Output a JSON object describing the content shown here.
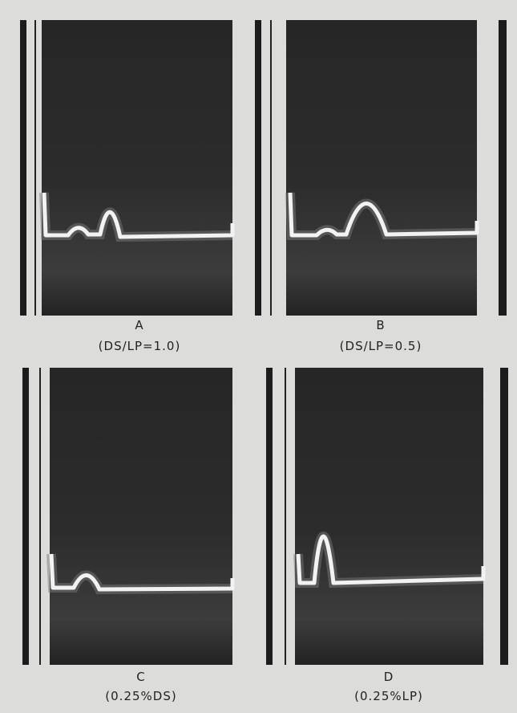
{
  "panels": [
    {
      "label": "A",
      "caption": "(DS/LP=1.0)"
    },
    {
      "label": "B",
      "caption": "(DS/LP=0.5)"
    },
    {
      "label": "C",
      "caption": "(0.25%DS)"
    },
    {
      "label": "D",
      "caption": "(0.25%LP)"
    }
  ]
}
